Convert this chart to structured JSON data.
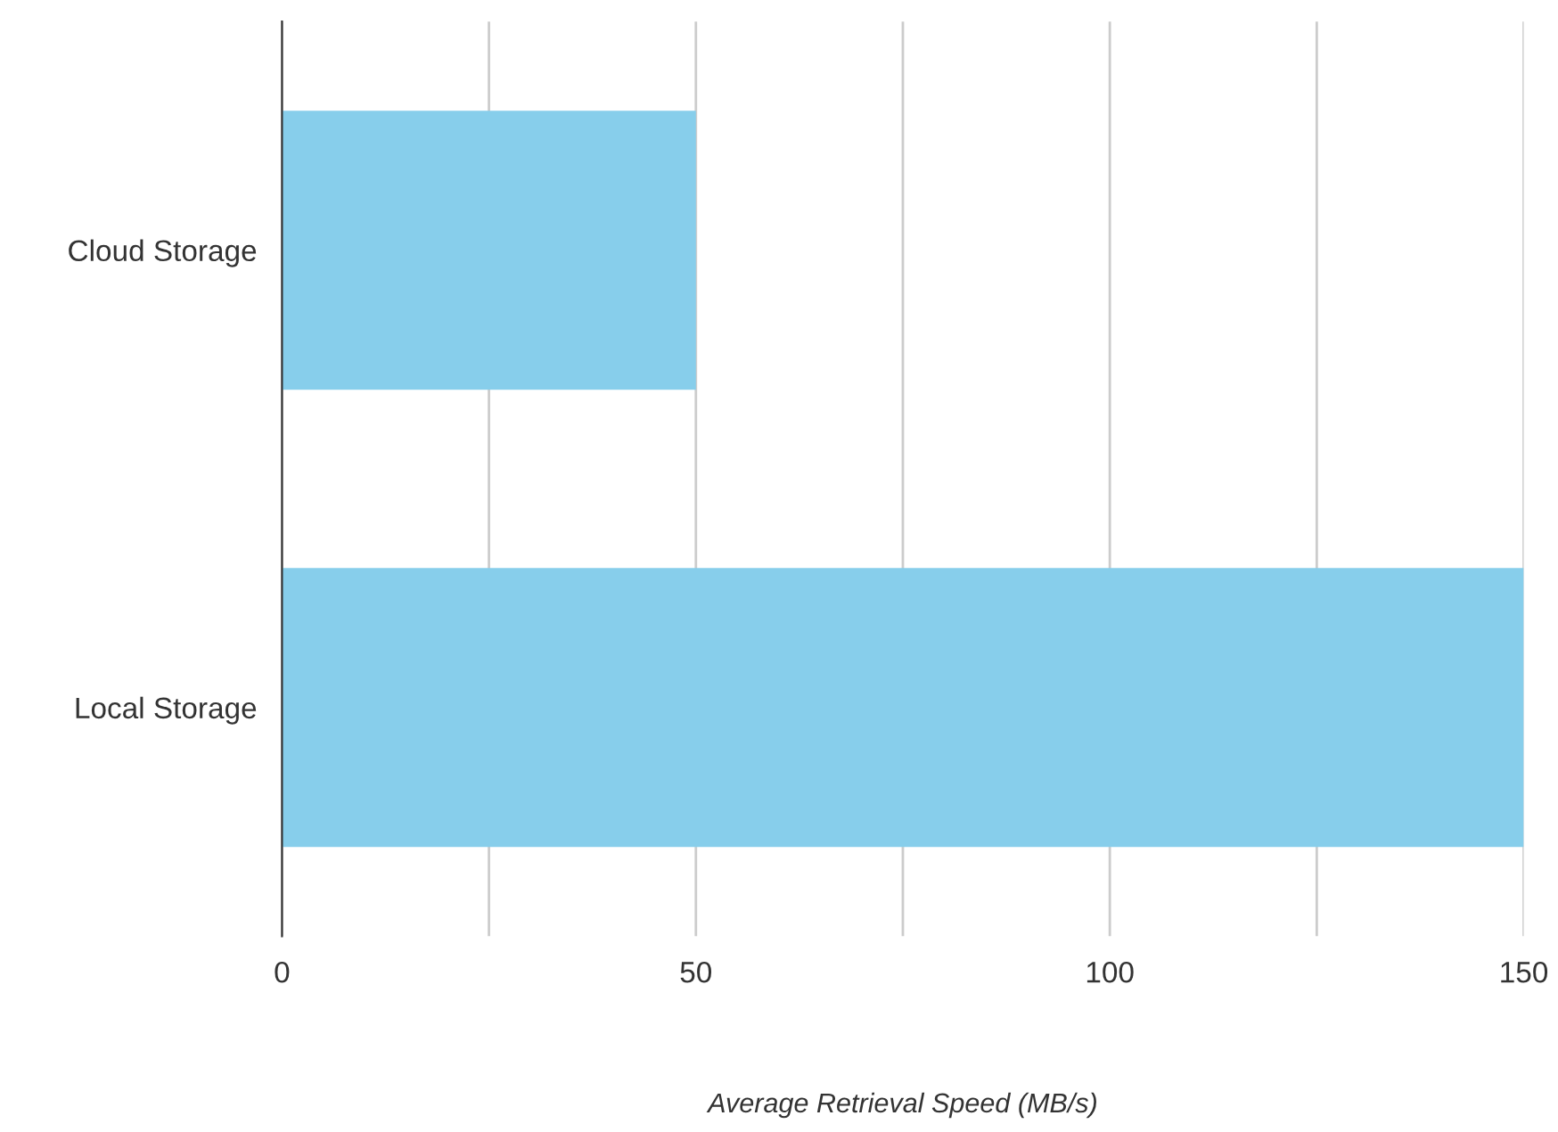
{
  "chart_data": {
    "type": "bar",
    "orientation": "horizontal",
    "categories": [
      "Cloud Storage",
      "Local Storage"
    ],
    "values": [
      50,
      150
    ],
    "color": "#87ceeb",
    "xlim": [
      0,
      150
    ],
    "xticks": [
      0,
      {
        "value": 25,
        "label": null
      },
      50,
      {
        "value": 75,
        "label": null
      },
      100,
      {
        "value": 125,
        "label": null
      },
      150
    ],
    "xlabel": "Average Retrieval Speed (MB/s)",
    "grid": "x"
  }
}
